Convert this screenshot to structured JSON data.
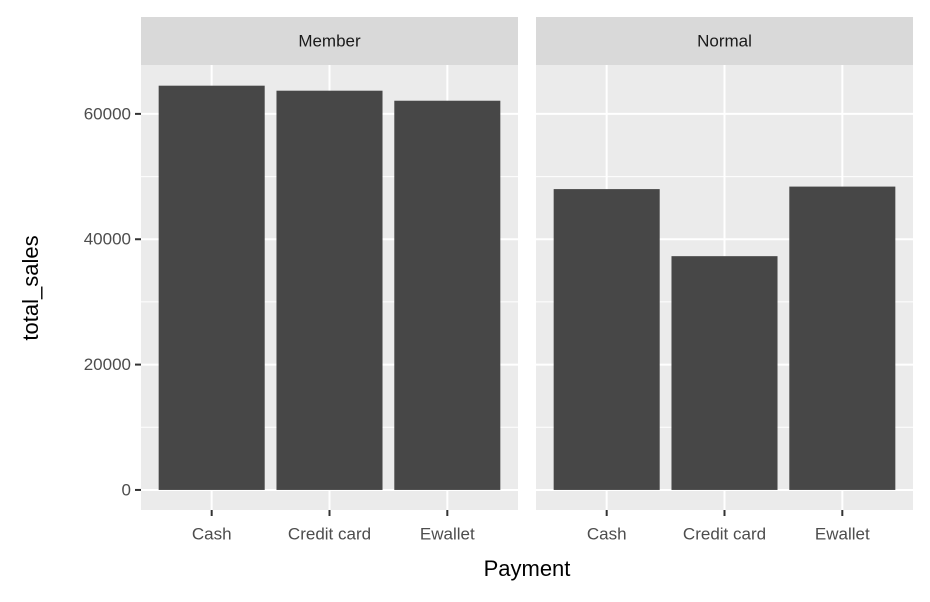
{
  "chart_data": {
    "type": "bar",
    "facet": true,
    "x_label": "Payment",
    "y_label": "total_sales",
    "categories": [
      "Cash",
      "Credit card",
      "Ewallet"
    ],
    "series": [
      {
        "name": "Member",
        "color": "#474747",
        "values": [
          64500,
          63700,
          62100
        ]
      },
      {
        "name": "Normal",
        "color": "#474747",
        "values": [
          48000,
          37300,
          48400
        ]
      }
    ],
    "ylim": [
      -3200,
      67800
    ],
    "yticks": [
      0,
      20000,
      40000,
      60000
    ],
    "grid": true
  }
}
